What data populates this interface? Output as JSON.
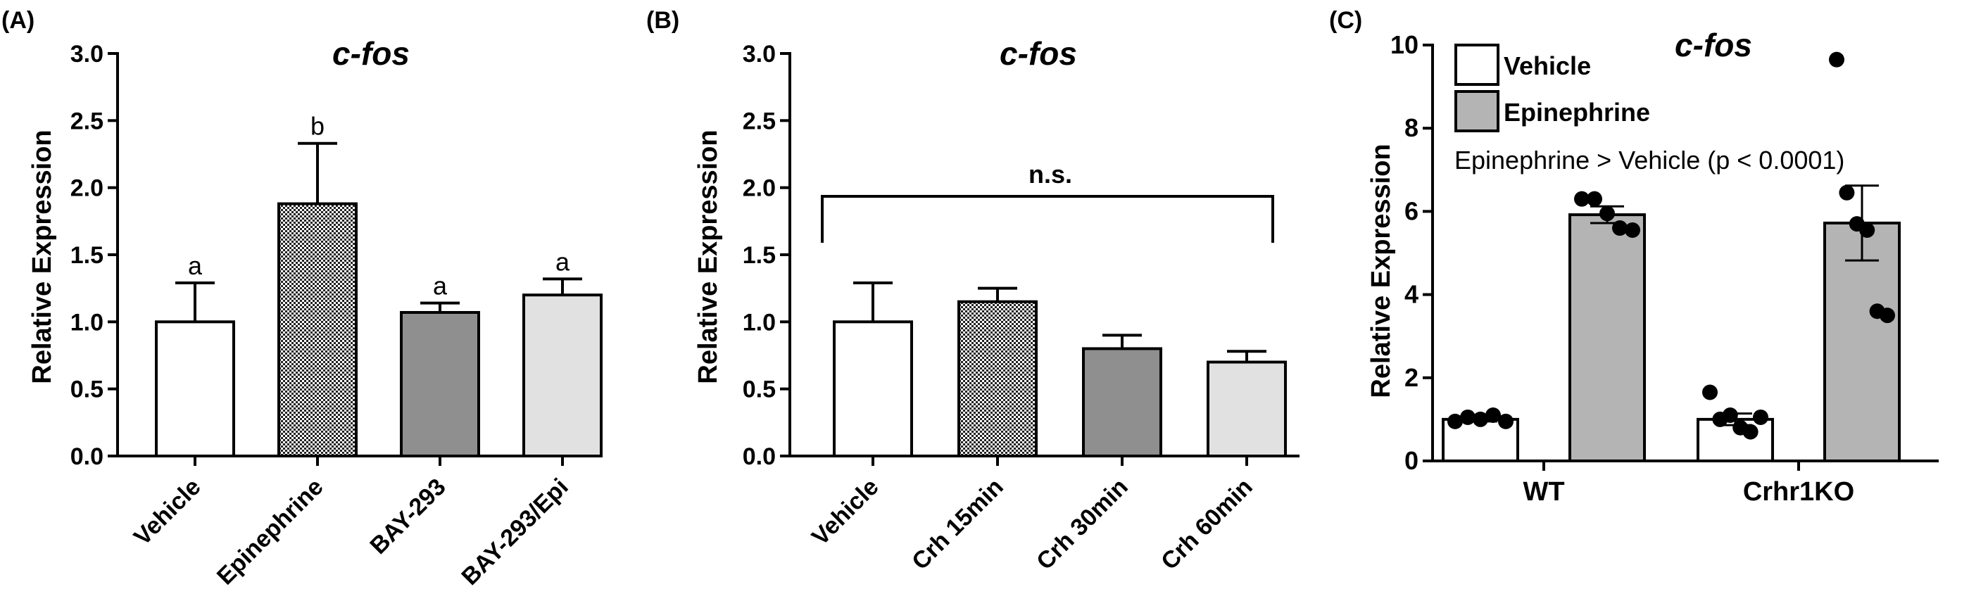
{
  "panels": [
    {
      "label": "(A)",
      "title": "c-fos",
      "ylabel": "Relative Expression",
      "significance": "",
      "legend": [],
      "annotation": ""
    },
    {
      "label": "(B)",
      "title": "c-fos",
      "ylabel": "Relative Expression",
      "significance": "n.s.",
      "legend": [],
      "annotation": ""
    },
    {
      "label": "(C)",
      "title": "c-fos",
      "ylabel": "Relative Expression",
      "significance": "",
      "legend": [
        "Vehicle",
        "Epinephrine"
      ],
      "annotation": "Epinephrine > Vehicle (p < 0.0001)"
    }
  ],
  "chart_data": [
    {
      "type": "bar",
      "title": "c-fos",
      "xlabel": "",
      "ylabel": "Relative Expression",
      "ylim": [
        0,
        3.0
      ],
      "yticks": [
        "0.0",
        "0.5",
        "1.0",
        "1.5",
        "2.0",
        "2.5",
        "3.0"
      ],
      "categories": [
        "Vehicle",
        "Epinephrine",
        "BAY-293",
        "BAY-293/Epi"
      ],
      "values": [
        1.0,
        1.88,
        1.07,
        1.2
      ],
      "error": [
        0.29,
        0.45,
        0.07,
        0.12
      ],
      "letters": [
        "a",
        "b",
        "a",
        "a"
      ],
      "fills": [
        "#ffffff",
        "checker",
        "#8f8f8f",
        "#e1e1e1"
      ],
      "grid": false
    },
    {
      "type": "bar",
      "title": "c-fos",
      "xlabel": "",
      "ylabel": "Relative Expression",
      "ylim": [
        0,
        3.0
      ],
      "yticks": [
        "0.0",
        "0.5",
        "1.0",
        "1.5",
        "2.0",
        "2.5",
        "3.0"
      ],
      "categories": [
        "Vehicle",
        "Crh 15min",
        "Crh 30min",
        "Crh 60min"
      ],
      "values": [
        1.0,
        1.15,
        0.8,
        0.7
      ],
      "error": [
        0.29,
        0.1,
        0.1,
        0.08
      ],
      "significance": "n.s.",
      "fills": [
        "#ffffff",
        "checker",
        "#8f8f8f",
        "#e1e1e1"
      ],
      "grid": false
    },
    {
      "type": "bar",
      "title": "c-fos",
      "xlabel": "",
      "ylabel": "Relative Expression",
      "ylim": [
        0,
        10
      ],
      "yticks": [
        "0",
        "2",
        "4",
        "6",
        "8",
        "10"
      ],
      "categories": [
        "WT",
        "Crhr1KO"
      ],
      "series": [
        {
          "name": "Vehicle",
          "color": "#ffffff",
          "values": [
            1.0,
            1.0
          ],
          "error": [
            0.05,
            0.14
          ],
          "points": [
            [
              0.95,
              1.05,
              1.0,
              1.1,
              0.95
            ],
            [
              1.65,
              1.0,
              1.1,
              0.8,
              0.7,
              1.05
            ]
          ]
        },
        {
          "name": "Epinephrine",
          "color": "#b4b4b4",
          "values": [
            5.92,
            5.72
          ],
          "error": [
            0.2,
            0.9
          ],
          "points": [
            [
              6.3,
              6.3,
              5.95,
              5.6,
              5.55
            ],
            [
              9.65,
              6.45,
              5.7,
              5.55,
              3.6,
              3.5
            ]
          ]
        }
      ],
      "annotation": "Epinephrine > Vehicle (p < 0.0001)",
      "legend_position": "top-left",
      "grid": false
    }
  ]
}
